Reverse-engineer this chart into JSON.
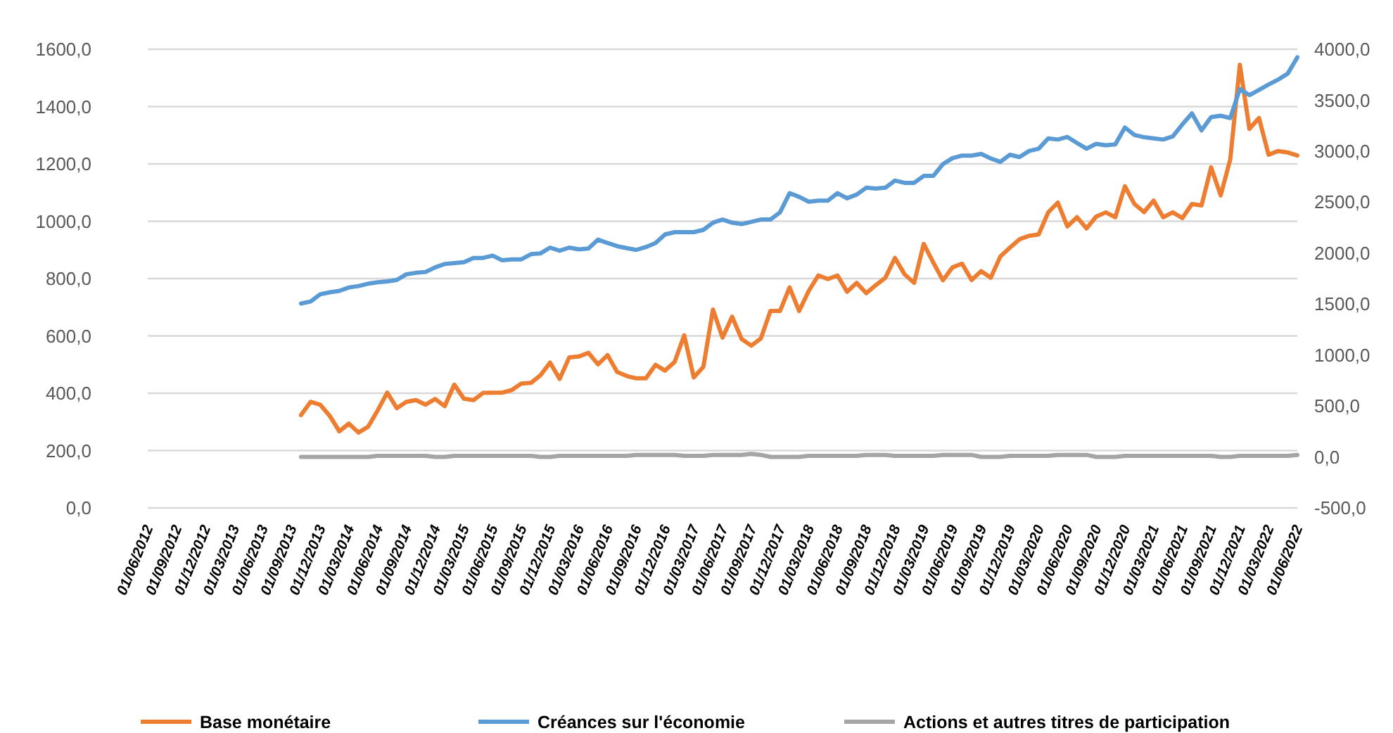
{
  "chart_data": {
    "type": "line",
    "categories": [
      "01/06/2012",
      null,
      null,
      "01/09/2012",
      null,
      null,
      "01/12/2012",
      null,
      null,
      "01/03/2013",
      null,
      null,
      "01/06/2013",
      null,
      null,
      "01/09/2013",
      null,
      null,
      "01/12/2013",
      null,
      null,
      "01/03/2014",
      null,
      null,
      "01/06/2014",
      null,
      null,
      "01/09/2014",
      null,
      null,
      "01/12/2014",
      null,
      null,
      "01/03/2015",
      null,
      null,
      "01/06/2015",
      null,
      null,
      "01/09/2015",
      null,
      null,
      "01/12/2015",
      null,
      null,
      "01/03/2016",
      null,
      null,
      "01/06/2016",
      null,
      null,
      "01/09/2016",
      null,
      null,
      "01/12/2016",
      null,
      null,
      "01/03/2017",
      null,
      null,
      "01/06/2017",
      null,
      null,
      "01/09/2017",
      null,
      null,
      "01/12/2017",
      null,
      null,
      "01/03/2018",
      null,
      null,
      "01/06/2018",
      null,
      null,
      "01/09/2018",
      null,
      null,
      "01/12/2018",
      null,
      null,
      "01/03/2019",
      null,
      null,
      "01/06/2019",
      null,
      null,
      "01/09/2019",
      null,
      null,
      "01/12/2019",
      null,
      null,
      "01/03/2020",
      null,
      null,
      "01/06/2020",
      null,
      null,
      "01/09/2020",
      null,
      null,
      "01/12/2020",
      null,
      null,
      "01/03/2021",
      null,
      null,
      "01/06/2021",
      null,
      null,
      "01/09/2021",
      null,
      null,
      "01/12/2021",
      null,
      null,
      "01/03/2022",
      null,
      null,
      "01/06/2022"
    ],
    "series": [
      {
        "name": "Base monétaire",
        "color": "#ed7d31",
        "values": [
          null,
          null,
          null,
          null,
          null,
          null,
          null,
          null,
          null,
          null,
          null,
          null,
          null,
          null,
          null,
          null,
          324,
          370,
          360,
          321,
          267,
          294,
          263,
          283,
          340,
          402,
          348,
          370,
          376,
          360,
          380,
          355,
          430,
          381,
          376,
          401,
          402,
          402,
          411,
          434,
          436,
          463,
          507,
          450,
          525,
          528,
          541,
          501,
          533,
          474,
          460,
          452,
          452,
          499,
          479,
          509,
          602,
          455,
          492,
          692,
          594,
          667,
          589,
          566,
          591,
          687,
          687,
          769,
          687,
          757,
          811,
          798,
          811,
          754,
          785,
          749,
          777,
          803,
          872,
          815,
          785,
          921,
          856,
          794,
          839,
          852,
          795,
          826,
          803,
          877,
          908,
          937,
          949,
          954,
          1031,
          1065,
          982,
          1014,
          975,
          1016,
          1031,
          1014,
          1122,
          1060,
          1032,
          1072,
          1014,
          1031,
          1011,
          1060,
          1055,
          1188,
          1090,
          1216,
          1546,
          1322,
          1360,
          1232,
          1245,
          1240,
          1229
        ]
      },
      {
        "name": "Créances sur l'économie",
        "color": "#5b9bd5",
        "values": [
          null,
          null,
          null,
          null,
          null,
          null,
          null,
          null,
          null,
          null,
          null,
          null,
          null,
          null,
          null,
          null,
          713,
          720,
          745,
          752,
          757,
          769,
          774,
          782,
          787,
          790,
          795,
          815,
          820,
          823,
          839,
          851,
          854,
          857,
          872,
          872,
          880,
          864,
          867,
          867,
          885,
          888,
          908,
          897,
          908,
          902,
          905,
          936,
          924,
          913,
          906,
          900,
          910,
          924,
          954,
          962,
          962,
          962,
          970,
          995,
          1006,
          995,
          990,
          998,
          1006,
          1006,
          1031,
          1098,
          1085,
          1068,
          1072,
          1072,
          1098,
          1080,
          1093,
          1117,
          1114,
          1117,
          1142,
          1134,
          1134,
          1158,
          1158,
          1199,
          1220,
          1229,
          1229,
          1235,
          1219,
          1207,
          1232,
          1224,
          1245,
          1253,
          1289,
          1285,
          1294,
          1273,
          1253,
          1270,
          1265,
          1268,
          1327,
          1301,
          1293,
          1289,
          1285,
          1296,
          1338,
          1376,
          1317,
          1363,
          1368,
          1360,
          1461,
          1440,
          1458,
          1477,
          1494,
          1515,
          1572
        ]
      },
      {
        "name": "Actions et autres titres de participation",
        "color": "#a5a5a5",
        "axis": "y2",
        "values": [
          null,
          null,
          null,
          null,
          null,
          null,
          null,
          null,
          null,
          null,
          null,
          null,
          null,
          null,
          null,
          null,
          0,
          0,
          0,
          0,
          0,
          0,
          0,
          0,
          10,
          10,
          10,
          10,
          10,
          10,
          0,
          0,
          10,
          10,
          10,
          10,
          10,
          10,
          10,
          10,
          10,
          0,
          0,
          10,
          10,
          10,
          10,
          10,
          10,
          10,
          10,
          20,
          20,
          20,
          20,
          20,
          10,
          10,
          10,
          20,
          20,
          20,
          20,
          30,
          20,
          0,
          0,
          0,
          0,
          10,
          10,
          10,
          10,
          10,
          10,
          20,
          20,
          20,
          10,
          10,
          10,
          10,
          10,
          20,
          20,
          20,
          20,
          0,
          0,
          0,
          10,
          10,
          10,
          10,
          10,
          20,
          20,
          20,
          20,
          0,
          0,
          0,
          10,
          10,
          10,
          10,
          10,
          10,
          10,
          10,
          10,
          10,
          0,
          0,
          10,
          10,
          10,
          10,
          10,
          10,
          20
        ]
      }
    ],
    "ylim": [
      0,
      1600
    ],
    "yticks": [
      {
        "value": 0,
        "label": "0,0"
      },
      {
        "value": 200,
        "label": "200,0"
      },
      {
        "value": 400,
        "label": "400,0"
      },
      {
        "value": 600,
        "label": "600,0"
      },
      {
        "value": 800,
        "label": "800,0"
      },
      {
        "value": 1000,
        "label": "1000,0"
      },
      {
        "value": 1200,
        "label": "1200,0"
      },
      {
        "value": 1400,
        "label": "1400,0"
      },
      {
        "value": 1600,
        "label": "1600,0"
      }
    ],
    "y2lim": [
      -500,
      4000
    ],
    "y2ticks": [
      {
        "value": -500,
        "label": "-500,0"
      },
      {
        "value": 0,
        "label": "0,0"
      },
      {
        "value": 500,
        "label": "500,0"
      },
      {
        "value": 1000,
        "label": "1000,0"
      },
      {
        "value": 1500,
        "label": "1500,0"
      },
      {
        "value": 2000,
        "label": "2000,0"
      },
      {
        "value": 2500,
        "label": "2500,0"
      },
      {
        "value": 3000,
        "label": "3000,0"
      },
      {
        "value": 3500,
        "label": "3500,0"
      },
      {
        "value": 4000,
        "label": "4000,0"
      }
    ],
    "grid": "y",
    "legend": "bottom",
    "marker": "none",
    "line_style": "solid"
  }
}
